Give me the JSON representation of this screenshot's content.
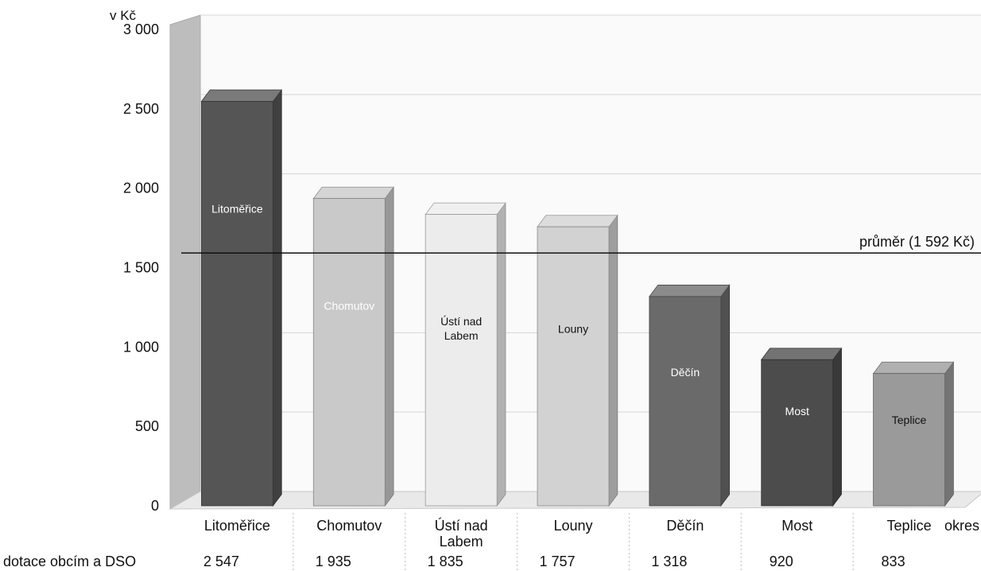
{
  "chart_data": {
    "type": "bar",
    "unit_label": "v Kč",
    "xlabel": "okres",
    "ylabel": "",
    "ylim": [
      0,
      3000
    ],
    "yticks": [
      "0",
      "500",
      "1 000",
      "1 500",
      "2 000",
      "2 500",
      "3 000"
    ],
    "categories": [
      "Litoměřice",
      "Chomutov",
      "Ústí nad Labem",
      "Louny",
      "Děčín",
      "Most",
      "Teplice"
    ],
    "series": [
      {
        "name": "dotace obcím a DSO",
        "values": [
          2547,
          1935,
          1835,
          1757,
          1318,
          920,
          833
        ],
        "labels": [
          "2 547",
          "1 935",
          "1 835",
          "1 757",
          "1 318",
          "920",
          "833"
        ]
      }
    ],
    "bar_colors": [
      "#555555",
      "#c9c9c9",
      "#ececec",
      "#d2d2d2",
      "#6a6a6a",
      "#4c4c4c",
      "#9a9a9a"
    ],
    "bar_label_colors": [
      "#ffffff",
      "#ffffff",
      "#111111",
      "#111111",
      "#ffffff",
      "#ffffff",
      "#111111"
    ],
    "average": {
      "value": 1592,
      "label": "průměr (1 592 Kč)"
    },
    "grid": true,
    "style": "3d"
  }
}
